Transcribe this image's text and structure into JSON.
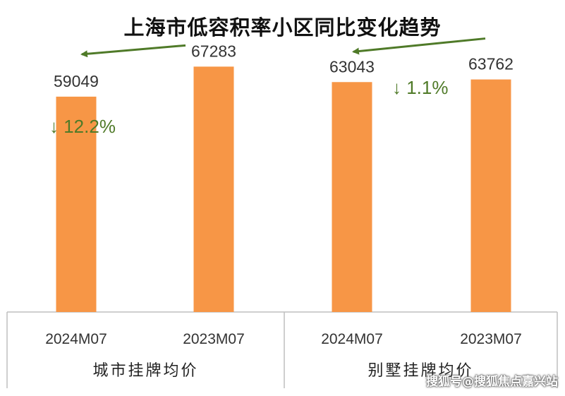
{
  "title": "上海市低容积率小区同比变化趋势",
  "watermark": "搜狐号@搜狐焦点嘉兴站",
  "chart_data": {
    "type": "bar",
    "title": "上海市低容积率小区同比变化趋势",
    "categories": [
      "2024M07",
      "2023M07",
      "2024M07",
      "2023M07"
    ],
    "groups": [
      {
        "label": "城市挂牌均价",
        "categories": [
          "2024M07",
          "2023M07"
        ],
        "values": [
          59049,
          67283
        ]
      },
      {
        "label": "别墅挂牌均价",
        "categories": [
          "2024M07",
          "2023M07"
        ],
        "values": [
          63043,
          63762
        ]
      }
    ],
    "values": [
      59049,
      67283,
      63043,
      63762
    ],
    "data_labels": [
      "59049",
      "67283",
      "63043",
      "63762"
    ],
    "annotations": [
      {
        "text": "↓ 12.2%",
        "group": 0,
        "from": "2023M07",
        "to": "2024M07"
      },
      {
        "text": "↓ 1.1%",
        "group": 1,
        "from": "2023M07",
        "to": "2024M07"
      }
    ],
    "xlabel": "",
    "ylabel": "",
    "ylim": [
      0,
      72000
    ],
    "grid": false,
    "legend": "none",
    "colors": {
      "bar": "#F79646",
      "arrow": "#4F7A28",
      "axis": "#BFBFBF",
      "text": "#333333"
    }
  }
}
